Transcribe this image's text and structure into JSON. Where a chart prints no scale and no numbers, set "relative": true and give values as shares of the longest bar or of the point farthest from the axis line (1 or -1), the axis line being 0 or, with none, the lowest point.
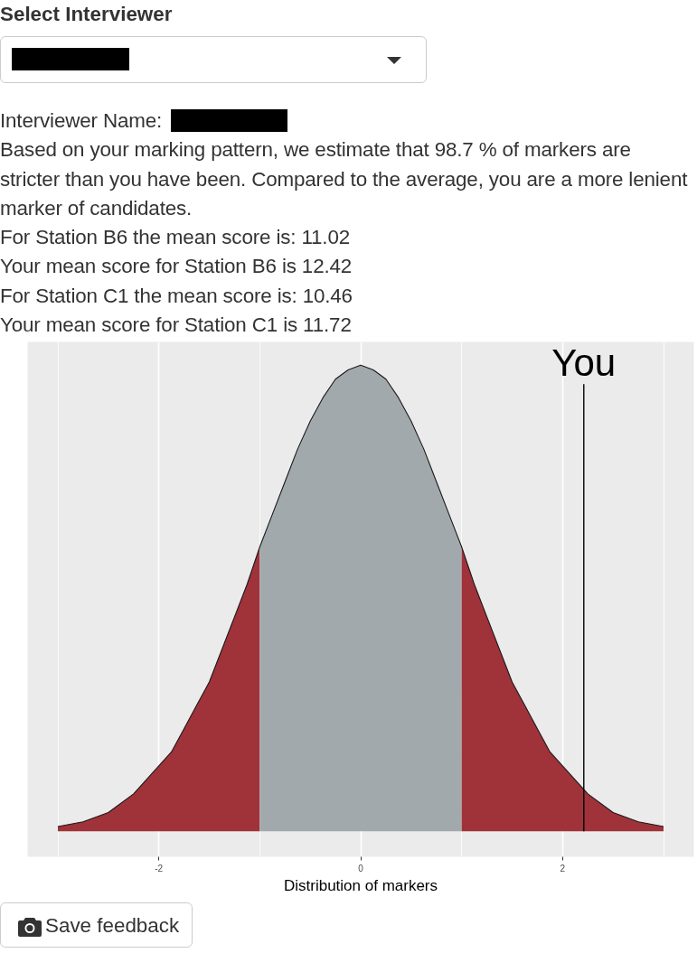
{
  "chart_data": {
    "type": "area",
    "relative": true,
    "annotations": [
      "Select Interviewer",
      "Interviewer Name:",
      "Based on your marking pattern, we estimate that 98.7 % of markers are stricter than you have been. Compared to the average, you are a more lenient marker of candidates.",
      "For Station B6 the mean score is: 11.02",
      "Your mean score for Station B6 is 12.42",
      "For Station C1 the mean score is: 10.46",
      "Your mean score for Station C1 is 11.72",
      "Save feedback"
    ],
    "xlabel": "Distribution of markers",
    "xlim": [
      -3.3,
      3.3
    ],
    "xticks": [
      -2,
      0,
      2
    ],
    "grid": "x",
    "tick_labels": "x",
    "x": [
      -3,
      -2.75,
      -2.5,
      -2.25,
      -2,
      -1.875,
      -1.75,
      -1.625,
      -1.5,
      -1.375,
      -1.25,
      -1.125,
      -1,
      -0.875,
      -0.75,
      -0.625,
      -0.5,
      -0.375,
      -0.25,
      -0.125,
      0,
      0.125,
      0.25,
      0.375,
      0.5,
      0.625,
      0.75,
      0.875,
      1,
      1.125,
      1.25,
      1.375,
      1.5,
      1.625,
      1.75,
      1.875,
      2,
      2.25,
      2.5,
      2.75,
      3
    ],
    "series": [
      {
        "color": "#a0323a",
        "values": [
          0.01,
          0.02,
          0.04,
          0.08,
          0.14,
          0.17,
          0.22,
          0.27,
          0.32,
          0.39,
          0.46,
          0.53,
          0.61,
          null,
          null,
          null,
          null,
          null,
          null,
          null,
          null,
          null,
          null,
          null,
          null,
          null,
          null,
          null,
          null,
          null,
          null,
          null,
          null,
          null,
          null,
          null,
          null,
          null,
          null,
          null,
          null
        ]
      },
      {
        "color": "#a2a9ac",
        "values": [
          null,
          null,
          null,
          null,
          null,
          null,
          null,
          null,
          null,
          null,
          null,
          null,
          0.61,
          0.68,
          0.75,
          0.82,
          0.88,
          0.93,
          0.97,
          0.99,
          1,
          0.99,
          0.97,
          0.93,
          0.88,
          0.82,
          0.75,
          0.68,
          0.61,
          null,
          null,
          null,
          null,
          null,
          null,
          null,
          null,
          null,
          null,
          null,
          null
        ]
      },
      {
        "color": "#a0323a",
        "values": [
          null,
          null,
          null,
          null,
          null,
          null,
          null,
          null,
          null,
          null,
          null,
          null,
          null,
          null,
          null,
          null,
          null,
          null,
          null,
          null,
          null,
          null,
          null,
          null,
          null,
          null,
          null,
          null,
          0.61,
          0.53,
          0.46,
          0.39,
          0.32,
          0.27,
          0.22,
          0.17,
          0.14,
          0.08,
          0.04,
          0.02,
          0.01
        ]
      },
      {
        "type": "line",
        "color": "#1a1a1a",
        "values": [
          0.01,
          0.02,
          0.04,
          0.08,
          0.14,
          0.17,
          0.22,
          0.27,
          0.32,
          0.39,
          0.46,
          0.53,
          0.61,
          0.68,
          0.75,
          0.82,
          0.88,
          0.93,
          0.97,
          0.99,
          1,
          0.99,
          0.97,
          0.93,
          0.88,
          0.82,
          0.75,
          0.68,
          0.61,
          0.53,
          0.46,
          0.39,
          0.32,
          0.27,
          0.22,
          0.17,
          0.14,
          0.08,
          0.04,
          0.02,
          0.01
        ]
      }
    ],
    "ref_lines": [
      {
        "axis": "x",
        "value": 2.21,
        "label": "You",
        "color": "#000000"
      }
    ]
  }
}
